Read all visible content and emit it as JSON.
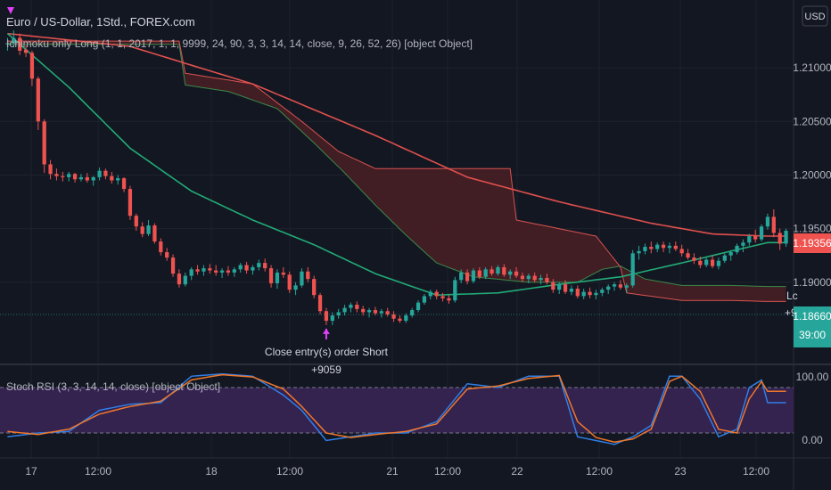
{
  "header": {
    "symbol_title": "Euro / US-Dollar, 1Std., FOREX.com",
    "strategy_label": "Ichimoku only Long (1, 1, 2017, 1, 1, 9999, 24, 90, 3, 3, 14, 14, close, 9, 26, 52, 26) [object Object]",
    "currency": "USD"
  },
  "price_axis": {
    "ticks": [
      "1.21000",
      "1.20500",
      "1.20000",
      "1.19500",
      "1.19000"
    ],
    "tag_red": "1.19356",
    "tag_green": "1.18660",
    "tag_countdown": "39:00"
  },
  "x_axis": {
    "ticks": [
      "17",
      "12:00",
      "18",
      "12:00",
      "21",
      "12:00",
      "22",
      "12:00",
      "23",
      "12:00"
    ]
  },
  "trade_annotation": {
    "text": "Close entry(s) order Short",
    "profit": "+9059"
  },
  "edge_fragments": {
    "label_lc": "Lc",
    "label_plus9": "+9"
  },
  "indicator": {
    "label": "Stoch RSI (3, 3, 14, 14, close) [object Object]",
    "ticks": [
      "100.00",
      "0.00"
    ]
  },
  "colors": {
    "background": "#131722",
    "bull": "#26a69a",
    "bear": "#ef5350",
    "ma_green": "#22ab76",
    "ma_red": "#e0504d",
    "kumo_fill": "#4a1f24",
    "stoch_k": "#2f7fe6",
    "stoch_d": "#f0772a",
    "stoch_band": "#34224f",
    "marker": "#e040fb"
  },
  "chart_data": {
    "type": "candlestick",
    "price_range": [
      1.1825,
      1.2155
    ],
    "candles": [
      [
        1.2122,
        1.2128,
        1.2116,
        1.2123
      ],
      [
        1.2123,
        1.2135,
        1.2119,
        1.2128
      ],
      [
        1.2128,
        1.2132,
        1.2112,
        1.2116
      ],
      [
        1.2117,
        1.2121,
        1.211,
        1.2114
      ],
      [
        1.2114,
        1.2116,
        1.2083,
        1.209
      ],
      [
        1.209,
        1.2092,
        1.2042,
        1.205
      ],
      [
        1.205,
        1.2052,
        1.2002,
        1.201
      ],
      [
        1.201,
        1.2014,
        1.1996,
        1.2001
      ],
      [
        1.2001,
        1.2006,
        1.1995,
        1.1999
      ],
      [
        1.1999,
        1.2003,
        1.1994,
        1.1998
      ],
      [
        1.1998,
        1.2003,
        1.1994,
        1.2001
      ],
      [
        1.2001,
        1.2002,
        1.1993,
        1.1996
      ],
      [
        1.1996,
        1.2001,
        1.1994,
        1.1998
      ],
      [
        1.1998,
        1.2002,
        1.1993,
        1.1995
      ],
      [
        1.1995,
        1.1999,
        1.199,
        1.1998
      ],
      [
        1.1998,
        1.2007,
        1.1995,
        1.2004
      ],
      [
        1.2004,
        1.2006,
        1.1996,
        1.1999
      ],
      [
        1.1999,
        1.2003,
        1.1992,
        1.1995
      ],
      [
        1.1995,
        1.2,
        1.1991,
        1.1997
      ],
      [
        1.1997,
        1.1998,
        1.1984,
        1.1987
      ],
      [
        1.1987,
        1.199,
        1.1958,
        1.1962
      ],
      [
        1.1962,
        1.1964,
        1.1948,
        1.1952
      ],
      [
        1.1952,
        1.1956,
        1.1942,
        1.1945
      ],
      [
        1.1945,
        1.1958,
        1.1943,
        1.1953
      ],
      [
        1.1953,
        1.1955,
        1.1936,
        1.1938
      ],
      [
        1.1938,
        1.1941,
        1.1925,
        1.1928
      ],
      [
        1.1928,
        1.1932,
        1.192,
        1.1923
      ],
      [
        1.1923,
        1.1926,
        1.1905,
        1.1908
      ],
      [
        1.1908,
        1.1912,
        1.1895,
        1.1898
      ],
      [
        1.1898,
        1.1909,
        1.1896,
        1.1906
      ],
      [
        1.1906,
        1.1914,
        1.1902,
        1.1912
      ],
      [
        1.1912,
        1.1916,
        1.1907,
        1.191
      ],
      [
        1.191,
        1.1916,
        1.1906,
        1.1913
      ],
      [
        1.1913,
        1.1917,
        1.1908,
        1.1911
      ],
      [
        1.1911,
        1.1916,
        1.1906,
        1.1909
      ],
      [
        1.1909,
        1.1913,
        1.1904,
        1.1911
      ],
      [
        1.1911,
        1.1915,
        1.1906,
        1.1909
      ],
      [
        1.1909,
        1.1914,
        1.1905,
        1.1912
      ],
      [
        1.1912,
        1.1918,
        1.1909,
        1.1916
      ],
      [
        1.1916,
        1.1919,
        1.1908,
        1.1911
      ],
      [
        1.1911,
        1.1916,
        1.1907,
        1.1914
      ],
      [
        1.1914,
        1.1921,
        1.1911,
        1.1918
      ],
      [
        1.1918,
        1.1922,
        1.191,
        1.1913
      ],
      [
        1.1913,
        1.1916,
        1.1895,
        1.1899
      ],
      [
        1.1899,
        1.1912,
        1.1894,
        1.1909
      ],
      [
        1.1909,
        1.1914,
        1.1904,
        1.1907
      ],
      [
        1.1907,
        1.191,
        1.189,
        1.1893
      ],
      [
        1.1893,
        1.19,
        1.1888,
        1.1897
      ],
      [
        1.1897,
        1.1913,
        1.1895,
        1.191
      ],
      [
        1.191,
        1.1914,
        1.19,
        1.1903
      ],
      [
        1.1903,
        1.1906,
        1.1885,
        1.1888
      ],
      [
        1.1888,
        1.189,
        1.187,
        1.1873
      ],
      [
        1.1873,
        1.1876,
        1.186,
        1.1864
      ],
      [
        1.1864,
        1.1872,
        1.186,
        1.1869
      ],
      [
        1.1869,
        1.1875,
        1.1866,
        1.1872
      ],
      [
        1.1872,
        1.1879,
        1.1869,
        1.1876
      ],
      [
        1.1876,
        1.1881,
        1.1872,
        1.1879
      ],
      [
        1.1879,
        1.1882,
        1.1872,
        1.1875
      ],
      [
        1.1875,
        1.1878,
        1.1869,
        1.1872
      ],
      [
        1.1872,
        1.1876,
        1.1867,
        1.1874
      ],
      [
        1.1874,
        1.1877,
        1.1869,
        1.1871
      ],
      [
        1.1871,
        1.1875,
        1.1867,
        1.1873
      ],
      [
        1.1873,
        1.1876,
        1.1868,
        1.187
      ],
      [
        1.187,
        1.1873,
        1.1863,
        1.1866
      ],
      [
        1.1866,
        1.1869,
        1.1862,
        1.1864
      ],
      [
        1.1864,
        1.1871,
        1.1862,
        1.1869
      ],
      [
        1.1869,
        1.1876,
        1.1867,
        1.1874
      ],
      [
        1.1874,
        1.1883,
        1.1872,
        1.1881
      ],
      [
        1.1881,
        1.1889,
        1.1879,
        1.1887
      ],
      [
        1.1887,
        1.1893,
        1.1884,
        1.1891
      ],
      [
        1.1891,
        1.1893,
        1.1884,
        1.1887
      ],
      [
        1.1887,
        1.189,
        1.1882,
        1.1885
      ],
      [
        1.1885,
        1.1888,
        1.188,
        1.1883
      ],
      [
        1.1883,
        1.1905,
        1.1881,
        1.1902
      ],
      [
        1.1902,
        1.1912,
        1.1899,
        1.1909
      ],
      [
        1.1909,
        1.1912,
        1.1898,
        1.1901
      ],
      [
        1.1901,
        1.1913,
        1.1899,
        1.1911
      ],
      [
        1.1911,
        1.1914,
        1.1903,
        1.1905
      ],
      [
        1.1905,
        1.1914,
        1.1903,
        1.1912
      ],
      [
        1.1912,
        1.1915,
        1.1906,
        1.1908
      ],
      [
        1.1908,
        1.1916,
        1.1906,
        1.1914
      ],
      [
        1.1914,
        1.1917,
        1.1905,
        1.1907
      ],
      [
        1.1907,
        1.1912,
        1.1903,
        1.191
      ],
      [
        1.191,
        1.1914,
        1.1904,
        1.1906
      ],
      [
        1.1906,
        1.1909,
        1.19,
        1.1903
      ],
      [
        1.1903,
        1.1908,
        1.1899,
        1.1906
      ],
      [
        1.1906,
        1.1909,
        1.19,
        1.1902
      ],
      [
        1.1902,
        1.1907,
        1.1898,
        1.1904
      ],
      [
        1.1904,
        1.1908,
        1.1898,
        1.19
      ],
      [
        1.19,
        1.1903,
        1.189,
        1.1893
      ],
      [
        1.1893,
        1.19,
        1.1889,
        1.1898
      ],
      [
        1.1898,
        1.1902,
        1.1889,
        1.1891
      ],
      [
        1.1891,
        1.1897,
        1.1888,
        1.1894
      ],
      [
        1.1894,
        1.1897,
        1.1885,
        1.1887
      ],
      [
        1.1887,
        1.1894,
        1.1884,
        1.1891
      ],
      [
        1.1891,
        1.1895,
        1.1885,
        1.1888
      ],
      [
        1.1888,
        1.1893,
        1.1884,
        1.189
      ],
      [
        1.189,
        1.1895,
        1.1887,
        1.1893
      ],
      [
        1.1893,
        1.1898,
        1.1889,
        1.1896
      ],
      [
        1.1896,
        1.19,
        1.1892,
        1.1898
      ],
      [
        1.1898,
        1.1902,
        1.1893,
        1.1895
      ],
      [
        1.1895,
        1.1899,
        1.189,
        1.1897
      ],
      [
        1.1897,
        1.193,
        1.1895,
        1.1927
      ],
      [
        1.1927,
        1.1934,
        1.1921,
        1.1929
      ],
      [
        1.1929,
        1.1936,
        1.1926,
        1.1933
      ],
      [
        1.1933,
        1.1938,
        1.1927,
        1.1931
      ],
      [
        1.1931,
        1.1937,
        1.1928,
        1.1935
      ],
      [
        1.1935,
        1.1938,
        1.1928,
        1.1932
      ],
      [
        1.1932,
        1.1937,
        1.1927,
        1.1934
      ],
      [
        1.1934,
        1.1938,
        1.1929,
        1.1931
      ],
      [
        1.1931,
        1.1935,
        1.1924,
        1.1927
      ],
      [
        1.1927,
        1.1931,
        1.1921,
        1.1923
      ],
      [
        1.1923,
        1.1927,
        1.1917,
        1.192
      ],
      [
        1.192,
        1.1924,
        1.1913,
        1.1916
      ],
      [
        1.1916,
        1.1923,
        1.1914,
        1.1921
      ],
      [
        1.1921,
        1.1925,
        1.1913,
        1.1915
      ],
      [
        1.1915,
        1.1923,
        1.1912,
        1.192
      ],
      [
        1.192,
        1.1927,
        1.1918,
        1.1925
      ],
      [
        1.1925,
        1.193,
        1.192,
        1.1928
      ],
      [
        1.1928,
        1.1936,
        1.1926,
        1.1934
      ],
      [
        1.1934,
        1.194,
        1.1928,
        1.1937
      ],
      [
        1.1937,
        1.1945,
        1.1934,
        1.1943
      ],
      [
        1.1943,
        1.1949,
        1.1937,
        1.194
      ],
      [
        1.194,
        1.1954,
        1.1938,
        1.1952
      ],
      [
        1.1952,
        1.1964,
        1.1949,
        1.1961
      ],
      [
        1.1961,
        1.1968,
        1.1942,
        1.1946
      ],
      [
        1.1946,
        1.195,
        1.193,
        1.1936
      ],
      [
        1.1936,
        1.195,
        1.1933,
        1.1948
      ]
    ],
    "ma_green": [
      [
        0,
        1.2132
      ],
      [
        10,
        1.2082
      ],
      [
        20,
        1.2025
      ],
      [
        30,
        1.1985
      ],
      [
        40,
        1.1958
      ],
      [
        50,
        1.1935
      ],
      [
        60,
        1.1908
      ],
      [
        70,
        1.1888
      ],
      [
        80,
        1.189
      ],
      [
        90,
        1.1898
      ],
      [
        100,
        1.1905
      ],
      [
        110,
        1.1918
      ],
      [
        118,
        1.1929
      ],
      [
        124,
        1.1937
      ]
    ],
    "ma_red": [
      [
        0,
        1.2132
      ],
      [
        20,
        1.212
      ],
      [
        40,
        1.2085
      ],
      [
        60,
        1.2037
      ],
      [
        75,
        1.1998
      ],
      [
        90,
        1.1975
      ],
      [
        105,
        1.1955
      ],
      [
        115,
        1.1945
      ],
      [
        124,
        1.1943
      ]
    ],
    "senkou_a": [
      [
        0,
        1.2122
      ],
      [
        28,
        1.2122
      ],
      [
        29,
        1.2084
      ],
      [
        36,
        1.2078
      ],
      [
        44,
        1.2062
      ],
      [
        50,
        1.203
      ],
      [
        55,
        1.2002
      ],
      [
        60,
        1.1972
      ],
      [
        65,
        1.1944
      ],
      [
        70,
        1.1918
      ],
      [
        76,
        1.1905
      ],
      [
        85,
        1.19
      ],
      [
        93,
        1.19
      ],
      [
        97,
        1.1912
      ],
      [
        100,
        1.1915
      ],
      [
        104,
        1.1903
      ],
      [
        110,
        1.1897
      ],
      [
        118,
        1.1897
      ],
      [
        124,
        1.1896
      ]
    ],
    "senkou_b": [
      [
        0,
        1.2125
      ],
      [
        28,
        1.2125
      ],
      [
        29,
        1.2095
      ],
      [
        40,
        1.2085
      ],
      [
        48,
        1.205
      ],
      [
        54,
        1.2022
      ],
      [
        60,
        1.2006
      ],
      [
        72,
        1.2006
      ],
      [
        82,
        1.2006
      ],
      [
        83,
        1.1958
      ],
      [
        96,
        1.1943
      ],
      [
        100,
        1.1914
      ],
      [
        101,
        1.189
      ],
      [
        110,
        1.1883
      ],
      [
        118,
        1.1883
      ],
      [
        124,
        1.1882
      ]
    ],
    "stoch_k": [
      [
        0,
        15
      ],
      [
        5,
        20
      ],
      [
        10,
        22
      ],
      [
        15,
        50
      ],
      [
        20,
        58
      ],
      [
        25,
        60
      ],
      [
        30,
        95
      ],
      [
        35,
        98
      ],
      [
        40,
        95
      ],
      [
        45,
        70
      ],
      [
        48,
        50
      ],
      [
        52,
        10
      ],
      [
        56,
        15
      ],
      [
        60,
        20
      ],
      [
        65,
        20
      ],
      [
        70,
        35
      ],
      [
        75,
        85
      ],
      [
        80,
        80
      ],
      [
        85,
        95
      ],
      [
        90,
        95
      ],
      [
        93,
        15
      ],
      [
        96,
        10
      ],
      [
        99,
        5
      ],
      [
        102,
        15
      ],
      [
        105,
        30
      ],
      [
        108,
        95
      ],
      [
        110,
        95
      ],
      [
        113,
        65
      ],
      [
        116,
        15
      ],
      [
        119,
        25
      ],
      [
        121,
        80
      ],
      [
        123,
        90
      ],
      [
        124,
        60
      ]
    ],
    "stoch_d": [
      [
        0,
        22
      ],
      [
        5,
        18
      ],
      [
        10,
        25
      ],
      [
        15,
        45
      ],
      [
        20,
        55
      ],
      [
        25,
        62
      ],
      [
        30,
        90
      ],
      [
        35,
        97
      ],
      [
        40,
        94
      ],
      [
        45,
        78
      ],
      [
        48,
        55
      ],
      [
        52,
        20
      ],
      [
        56,
        14
      ],
      [
        60,
        18
      ],
      [
        65,
        22
      ],
      [
        70,
        32
      ],
      [
        75,
        78
      ],
      [
        80,
        82
      ],
      [
        85,
        92
      ],
      [
        90,
        96
      ],
      [
        93,
        35
      ],
      [
        96,
        14
      ],
      [
        99,
        8
      ],
      [
        102,
        12
      ],
      [
        105,
        25
      ],
      [
        108,
        88
      ],
      [
        110,
        95
      ],
      [
        113,
        75
      ],
      [
        116,
        25
      ],
      [
        119,
        20
      ],
      [
        121,
        65
      ],
      [
        123,
        88
      ],
      [
        124,
        75
      ]
    ],
    "markers": [
      {
        "bar": 52,
        "label": "Close entry(s) order Short",
        "profit": "+9059"
      }
    ]
  }
}
